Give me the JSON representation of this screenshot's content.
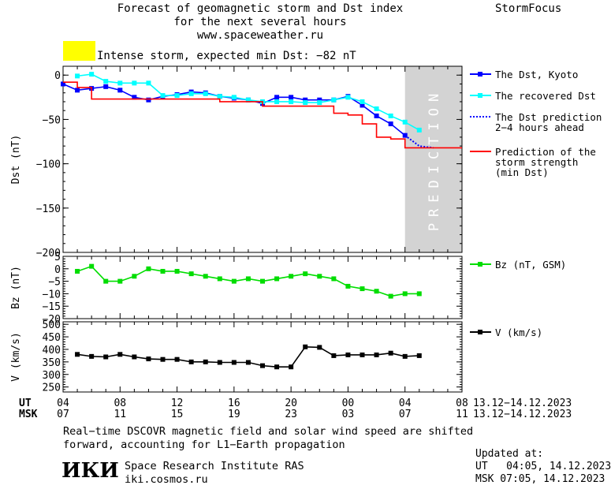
{
  "header": {
    "title_line1": "Forecast of geomagnetic storm and Dst index",
    "title_line2": "for the next several hours",
    "title_line3": "www.spaceweather.ru",
    "brand": "StormFocus"
  },
  "status": {
    "text": "Intense storm, expected min Dst: −82 nT",
    "swatch_color": "#ffff00"
  },
  "prediction_zone": {
    "label": "PREDICTION",
    "color": "#d3d3d3"
  },
  "x_axis": {
    "ut_label": "UT",
    "msk_label": "MSK",
    "ut_ticks": [
      "04",
      "08",
      "12",
      "16",
      "20",
      "00",
      "04",
      "08"
    ],
    "msk_ticks": [
      "07",
      "11",
      "15",
      "19",
      "23",
      "03",
      "07",
      "11"
    ],
    "date_range_ut": "13.12−14.12.2023",
    "date_range_msk": "13.12−14.12.2023"
  },
  "chart_data": [
    {
      "type": "line",
      "panel": "dst",
      "ylabel": "Dst (nT)",
      "ylim": [
        -200,
        10
      ],
      "yticks": [
        "0",
        "−50",
        "−100",
        "−150",
        "−200"
      ],
      "x_unit": "hours since 13.12.2023 04:00 UT",
      "xlim": [
        0,
        28
      ],
      "prediction_start": 24,
      "series": [
        {
          "name": "The Dst, Kyoto",
          "color": "#0000ff",
          "marker": "square",
          "x": [
            0,
            1,
            2,
            3,
            4,
            5,
            6,
            7,
            8,
            9,
            10,
            11,
            12,
            13,
            14,
            15,
            16,
            17,
            18,
            19,
            20,
            21,
            22,
            23,
            24
          ],
          "y": [
            -10,
            -17,
            -15,
            -13,
            -17,
            -25,
            -28,
            -24,
            -22,
            -19,
            -20,
            -24,
            -26,
            -28,
            -32,
            -25,
            -25,
            -28,
            -28,
            -28,
            -24,
            -34,
            -46,
            -55,
            -68
          ]
        },
        {
          "name": "The recovered Dst",
          "color": "#00ffff",
          "marker": "square",
          "x": [
            1,
            2,
            3,
            4,
            5,
            6,
            7,
            8,
            9,
            10,
            11,
            12,
            13,
            14,
            15,
            16,
            17,
            18,
            19,
            20,
            21,
            22,
            23,
            24,
            25
          ],
          "y": [
            -1,
            1,
            -7,
            -9,
            -9,
            -9,
            -23,
            -23,
            -21,
            -21,
            -24,
            -25,
            -28,
            -30,
            -30,
            -30,
            -31,
            -31,
            -28,
            -25,
            -30,
            -38,
            -46,
            -53,
            -62
          ]
        },
        {
          "name": "The Dst prediction",
          "name_line2": "2−4 hours ahead",
          "color": "#0000ff",
          "style": "dotted",
          "x": [
            24,
            25,
            26
          ],
          "y": [
            -68,
            -80,
            -82
          ]
        },
        {
          "name": "Prediction of the",
          "name_line2": "storm strength",
          "name_line3": "(min Dst)",
          "color": "#ff0000",
          "style": "step",
          "x": [
            0,
            1,
            2,
            8,
            10,
            11,
            12,
            14,
            15,
            16,
            17,
            18,
            19,
            20,
            21,
            22,
            23,
            24,
            28
          ],
          "y": [
            -8,
            -14,
            -27,
            -27,
            -27,
            -30,
            -30,
            -35,
            -35,
            -35,
            -35,
            -35,
            -43,
            -45,
            -55,
            -70,
            -72,
            -82,
            -82
          ]
        }
      ]
    },
    {
      "type": "line",
      "panel": "bz",
      "ylabel": "Bz (nT)",
      "ylim": [
        -20,
        5
      ],
      "yticks": [
        "5",
        "0",
        "−5",
        "−10",
        "−15",
        "−20"
      ],
      "xlim": [
        0,
        28
      ],
      "series": [
        {
          "name": "Bz (nT, GSM)",
          "color": "#00dd00",
          "marker": "square",
          "x": [
            1,
            2,
            3,
            4,
            5,
            6,
            7,
            8,
            9,
            10,
            11,
            12,
            13,
            14,
            15,
            16,
            17,
            18,
            19,
            20,
            21,
            22,
            23,
            24,
            25
          ],
          "y": [
            -1,
            1,
            -5,
            -5,
            -3,
            0,
            -1,
            -1,
            -2,
            -3,
            -4,
            -5,
            -4,
            -5,
            -4,
            -3,
            -2,
            -3,
            -4,
            -7,
            -8,
            -9,
            -11,
            -10,
            -10
          ]
        }
      ]
    },
    {
      "type": "line",
      "panel": "v",
      "ylabel": "V (km/s)",
      "ylim": [
        230,
        510
      ],
      "yticks": [
        "500",
        "450",
        "400",
        "350",
        "300",
        "250"
      ],
      "xlim": [
        0,
        28
      ],
      "series": [
        {
          "name": "V (km/s)",
          "color": "#000000",
          "marker": "square",
          "x": [
            1,
            2,
            3,
            4,
            5,
            6,
            7,
            8,
            9,
            10,
            11,
            12,
            13,
            14,
            15,
            16,
            17,
            18,
            19,
            20,
            21,
            22,
            23,
            24,
            25
          ],
          "y": [
            380,
            372,
            370,
            380,
            370,
            362,
            360,
            360,
            350,
            350,
            348,
            348,
            348,
            335,
            330,
            330,
            410,
            408,
            375,
            378,
            378,
            378,
            385,
            372,
            375
          ]
        }
      ]
    }
  ],
  "footer": {
    "note_line1": "Real−time DSCOVR magnetic field and solar wind speed are shifted",
    "note_line2": "forward, accounting for L1−Earth propagation",
    "logo": "ИКИ",
    "institute": "Space Research Institute RAS",
    "site": "iki.cosmos.ru",
    "updated_label": "Updated at:",
    "updated_ut": "UT   04:05, 14.12.2023",
    "updated_msk": "MSK 07:05, 14.12.2023"
  }
}
